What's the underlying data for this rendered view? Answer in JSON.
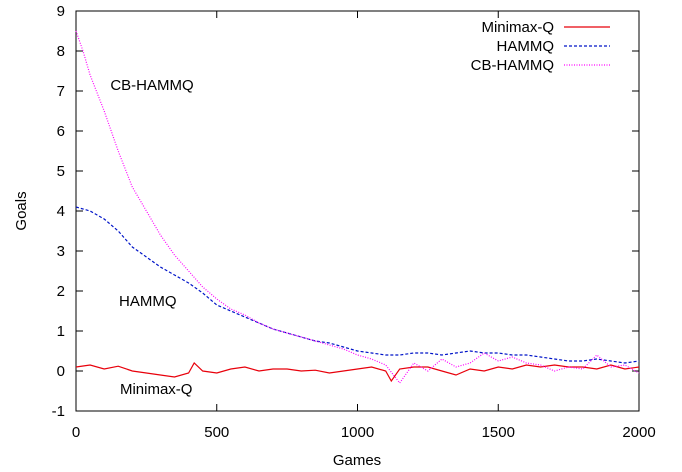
{
  "chart_data": {
    "type": "line",
    "xlabel": "Games",
    "ylabel": "Goals",
    "xlim": [
      0,
      2000
    ],
    "ylim": [
      -1,
      9
    ],
    "xticks": [
      "0",
      "500",
      "1000",
      "1500",
      "2000"
    ],
    "yticks": [
      "-1",
      "0",
      "1",
      "2",
      "3",
      "4",
      "5",
      "6",
      "7",
      "8",
      "9"
    ],
    "grid": false,
    "legend_position": "top-right",
    "annotations": [
      {
        "text": "CB-HAMMQ",
        "x": 270,
        "y": 7.15
      },
      {
        "text": "HAMMQ",
        "x": 255,
        "y": 1.75
      },
      {
        "text": "Minimax-Q",
        "x": 285,
        "y": -0.45
      }
    ],
    "series": [
      {
        "name": "Minimax-Q",
        "color": "#e8000b",
        "style": "solid",
        "x": [
          0,
          50,
          100,
          150,
          200,
          250,
          300,
          350,
          400,
          420,
          450,
          500,
          550,
          600,
          650,
          700,
          750,
          800,
          850,
          900,
          950,
          1000,
          1050,
          1100,
          1120,
          1150,
          1200,
          1250,
          1300,
          1350,
          1400,
          1450,
          1500,
          1550,
          1600,
          1650,
          1700,
          1750,
          1800,
          1850,
          1900,
          1950,
          2000
        ],
        "y": [
          0.1,
          0.15,
          0.05,
          0.12,
          0.0,
          -0.05,
          -0.1,
          -0.15,
          -0.05,
          0.2,
          0.0,
          -0.05,
          0.05,
          0.1,
          0.0,
          0.05,
          0.05,
          0.0,
          0.02,
          -0.05,
          0.0,
          0.05,
          0.1,
          0.0,
          -0.25,
          0.05,
          0.1,
          0.1,
          0.0,
          -0.1,
          0.05,
          0.0,
          0.1,
          0.05,
          0.15,
          0.1,
          0.15,
          0.1,
          0.1,
          0.05,
          0.15,
          0.05,
          0.1
        ]
      },
      {
        "name": "HAMMQ",
        "color": "#0014c8",
        "style": "dashed",
        "x": [
          0,
          50,
          100,
          150,
          200,
          250,
          300,
          350,
          400,
          450,
          500,
          550,
          600,
          650,
          700,
          750,
          800,
          850,
          900,
          950,
          1000,
          1050,
          1100,
          1150,
          1200,
          1250,
          1300,
          1350,
          1400,
          1450,
          1500,
          1550,
          1600,
          1650,
          1700,
          1750,
          1800,
          1850,
          1900,
          1950,
          2000
        ],
        "y": [
          4.1,
          4.0,
          3.8,
          3.5,
          3.1,
          2.85,
          2.6,
          2.4,
          2.2,
          1.95,
          1.65,
          1.5,
          1.35,
          1.2,
          1.05,
          0.95,
          0.85,
          0.75,
          0.7,
          0.6,
          0.5,
          0.45,
          0.4,
          0.4,
          0.45,
          0.45,
          0.4,
          0.45,
          0.5,
          0.45,
          0.45,
          0.4,
          0.4,
          0.35,
          0.3,
          0.25,
          0.25,
          0.3,
          0.25,
          0.2,
          0.25
        ]
      },
      {
        "name": "CB-HAMMQ",
        "color": "#ff00ff",
        "style": "dotted",
        "x": [
          0,
          25,
          50,
          100,
          150,
          200,
          250,
          300,
          350,
          400,
          450,
          500,
          550,
          600,
          650,
          700,
          750,
          800,
          850,
          900,
          950,
          1000,
          1050,
          1100,
          1150,
          1200,
          1250,
          1300,
          1350,
          1400,
          1450,
          1500,
          1550,
          1600,
          1650,
          1700,
          1750,
          1800,
          1850,
          1900,
          1950,
          2000
        ],
        "y": [
          8.5,
          8.0,
          7.4,
          6.5,
          5.5,
          4.6,
          4.0,
          3.4,
          2.9,
          2.5,
          2.1,
          1.8,
          1.55,
          1.4,
          1.2,
          1.05,
          0.95,
          0.85,
          0.75,
          0.65,
          0.55,
          0.4,
          0.3,
          0.15,
          -0.3,
          0.2,
          0.0,
          0.3,
          0.1,
          0.2,
          0.45,
          0.25,
          0.35,
          0.2,
          0.15,
          0.0,
          0.1,
          0.05,
          0.4,
          0.1,
          0.15,
          -0.05
        ]
      }
    ]
  }
}
